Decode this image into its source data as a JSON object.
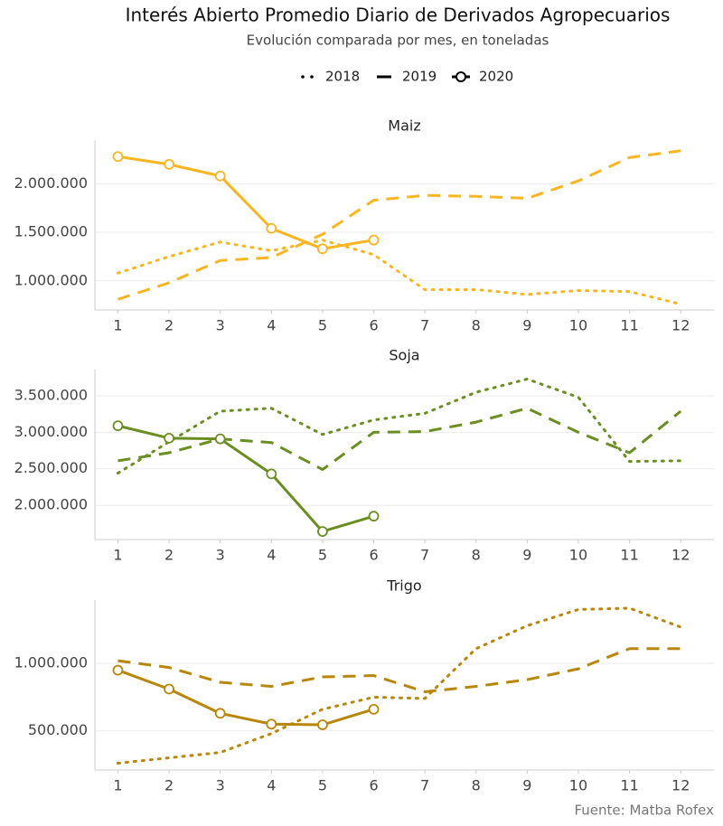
{
  "title": "Interés Abierto Promedio Diario de Derivados Agropecuarios",
  "subtitle": "Evolución comparada por mes, en toneladas",
  "caption": "Fuente: Matba Rofex",
  "chart_data": [
    {
      "type": "line",
      "title": "Maiz",
      "color": "#f9b522",
      "x": [
        1,
        2,
        3,
        4,
        5,
        6,
        7,
        8,
        9,
        10,
        11,
        12
      ],
      "xlim": [
        0.55,
        12.65
      ],
      "xticks": [
        1,
        2,
        3,
        4,
        5,
        6,
        7,
        8,
        9,
        10,
        11,
        12
      ],
      "ylim": [
        700000,
        2450000
      ],
      "yticks": [
        {
          "value": 1000000,
          "label": "1.000.000"
        },
        {
          "value": 1500000,
          "label": "1.500.000"
        },
        {
          "value": 2000000,
          "label": "2.000.000"
        }
      ],
      "grid": true,
      "series": [
        {
          "name": "2018",
          "style": "dotted",
          "values": [
            1080000,
            1250000,
            1400000,
            1310000,
            1420000,
            1270000,
            910000,
            910000,
            860000,
            900000,
            890000,
            760000
          ]
        },
        {
          "name": "2019",
          "style": "dashed",
          "values": [
            810000,
            980000,
            1210000,
            1240000,
            1480000,
            1830000,
            1880000,
            1870000,
            1850000,
            2030000,
            2270000,
            2340000
          ]
        },
        {
          "name": "2020",
          "style": "solid-markers",
          "values": [
            2280000,
            2200000,
            2080000,
            1540000,
            1330000,
            1420000,
            null,
            null,
            null,
            null,
            null,
            null
          ]
        }
      ]
    },
    {
      "type": "line",
      "title": "Soja",
      "color": "#6b8e23",
      "x": [
        1,
        2,
        3,
        4,
        5,
        6,
        7,
        8,
        9,
        10,
        11,
        12
      ],
      "xlim": [
        0.55,
        12.65
      ],
      "xticks": [
        1,
        2,
        3,
        4,
        5,
        6,
        7,
        8,
        9,
        10,
        11,
        12
      ],
      "ylim": [
        1530000,
        3860000
      ],
      "yticks": [
        {
          "value": 2000000,
          "label": "2.000.000"
        },
        {
          "value": 2500000,
          "label": "2.500.000"
        },
        {
          "value": 3000000,
          "label": "3.000.000"
        },
        {
          "value": 3500000,
          "label": "3.500.000"
        }
      ],
      "grid": true,
      "series": [
        {
          "name": "2018",
          "style": "dotted",
          "values": [
            2440000,
            2870000,
            3290000,
            3330000,
            2970000,
            3170000,
            3260000,
            3550000,
            3730000,
            3480000,
            2600000,
            2610000
          ]
        },
        {
          "name": "2019",
          "style": "dashed",
          "values": [
            2610000,
            2720000,
            2910000,
            2860000,
            2490000,
            3000000,
            3010000,
            3140000,
            3330000,
            3000000,
            2720000,
            3290000
          ]
        },
        {
          "name": "2020",
          "style": "solid-markers",
          "values": [
            3090000,
            2920000,
            2910000,
            2430000,
            1640000,
            1850000,
            null,
            null,
            null,
            null,
            null,
            null
          ]
        }
      ]
    },
    {
      "type": "line",
      "title": "Trigo",
      "color": "#b8860b",
      "x": [
        1,
        2,
        3,
        4,
        5,
        6,
        7,
        8,
        9,
        10,
        11,
        12
      ],
      "xlim": [
        0.55,
        12.65
      ],
      "xticks": [
        1,
        2,
        3,
        4,
        5,
        6,
        7,
        8,
        9,
        10,
        11,
        12
      ],
      "ylim": [
        210000,
        1470000
      ],
      "yticks": [
        {
          "value": 500000,
          "label": "500.000"
        },
        {
          "value": 1000000,
          "label": "1.000.000"
        }
      ],
      "grid": true,
      "series": [
        {
          "name": "2018",
          "style": "dotted",
          "values": [
            260000,
            300000,
            340000,
            480000,
            660000,
            750000,
            740000,
            1110000,
            1280000,
            1400000,
            1410000,
            1270000
          ]
        },
        {
          "name": "2019",
          "style": "dashed",
          "values": [
            1020000,
            970000,
            860000,
            830000,
            900000,
            910000,
            790000,
            830000,
            880000,
            960000,
            1110000,
            1110000
          ]
        },
        {
          "name": "2020",
          "style": "solid-markers",
          "values": [
            950000,
            810000,
            630000,
            550000,
            545000,
            660000,
            null,
            null,
            null,
            null,
            null,
            null
          ]
        }
      ]
    }
  ]
}
